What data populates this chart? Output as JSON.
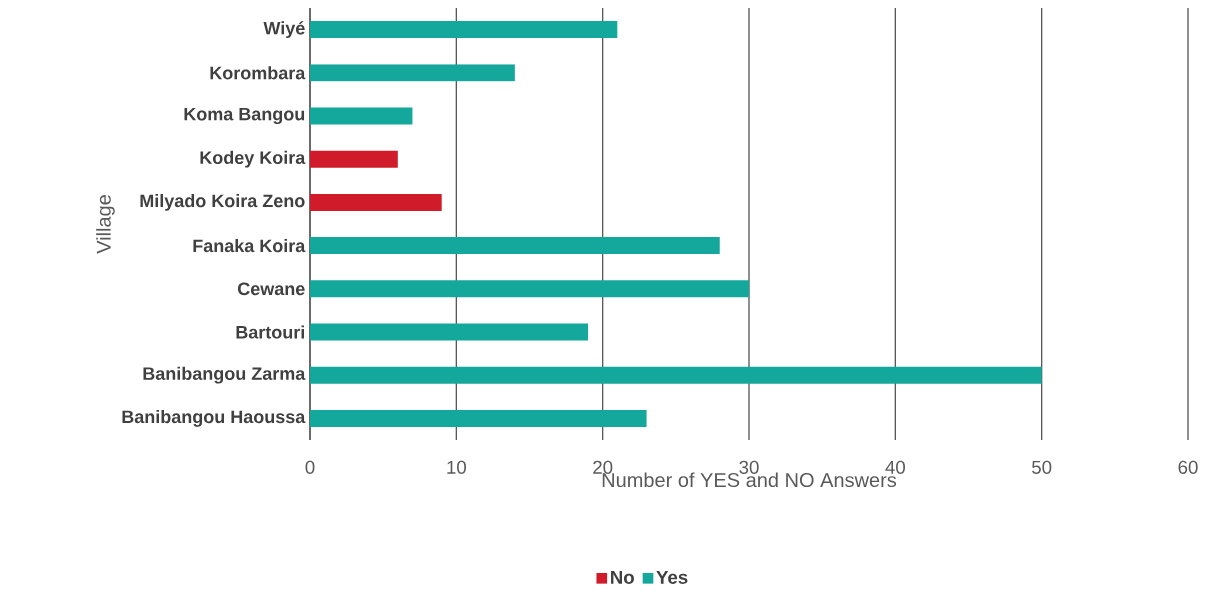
{
  "chart_data": {
    "type": "bar",
    "orientation": "horizontal",
    "stacked": true,
    "xlabel": "Number of YES and NO Answers",
    "ylabel": "Village",
    "categories": [
      "Wiyé",
      "Korombara",
      "Koma Bangou",
      "Kodey Koira",
      "Milyado Koira Zeno",
      "Fanaka Koira",
      "Cewane",
      "Bartouri",
      "Banibangou Zarma",
      "Banibangou Haoussa"
    ],
    "series": [
      {
        "name": "No",
        "color": "#d01c2a",
        "values": [
          null,
          null,
          null,
          6,
          9,
          null,
          null,
          null,
          null,
          null
        ]
      },
      {
        "name": "Yes",
        "color": "#14a89c",
        "values": [
          21,
          14,
          7,
          null,
          null,
          28,
          30,
          19,
          50,
          23
        ]
      }
    ],
    "xlim": [
      0,
      60
    ],
    "xticks": [
      0,
      10,
      20,
      30,
      40,
      50,
      60
    ],
    "grid": "x",
    "legend": "bottom"
  }
}
